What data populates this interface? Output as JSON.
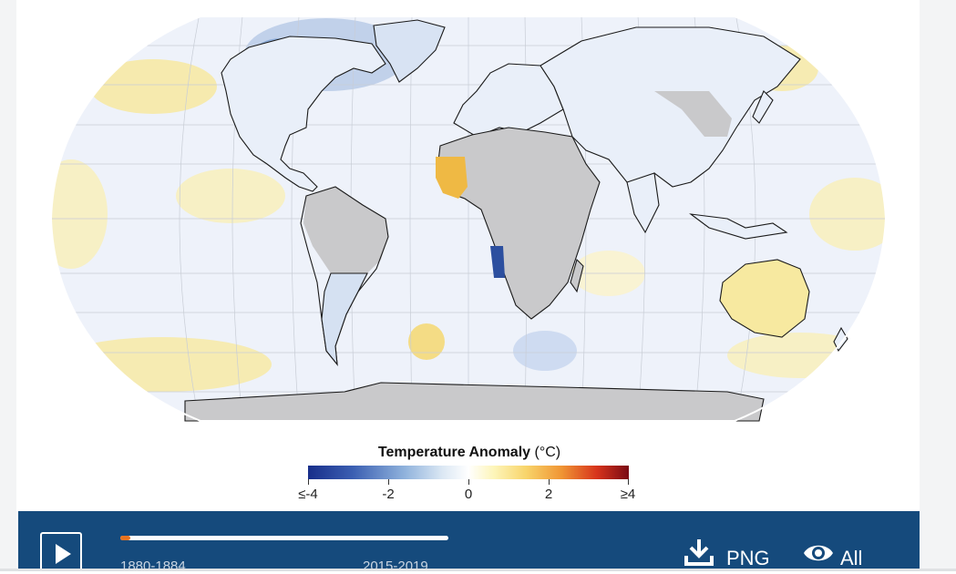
{
  "map": {
    "colors": {
      "ocean": "#eef2fa",
      "land": "#e9eff9",
      "no_data": "#c9c9cb",
      "coast": "#1a1a1a",
      "grid": "#c8cdd6",
      "warm": "#f7e9a0",
      "warm_strong": "#efb944",
      "cool": "#b9cbe6",
      "cool_strong": "#2c4f9f"
    }
  },
  "legend": {
    "title": "Temperature Anomaly",
    "unit": "(°C)",
    "ticks": [
      "≤-4",
      "-2",
      "0",
      "2",
      "≥4"
    ],
    "range": [
      -4,
      4
    ]
  },
  "controls": {
    "play_icon": "play-icon",
    "timeline": {
      "start_label": "1880-1884",
      "end_label": "2015-2019",
      "progress": 0.03
    },
    "download": {
      "label": "PNG",
      "icon": "download-icon"
    },
    "visibility": {
      "label": "All",
      "icon": "eye-icon"
    },
    "accent": "#e8731f",
    "bar_color": "#154a7c"
  }
}
